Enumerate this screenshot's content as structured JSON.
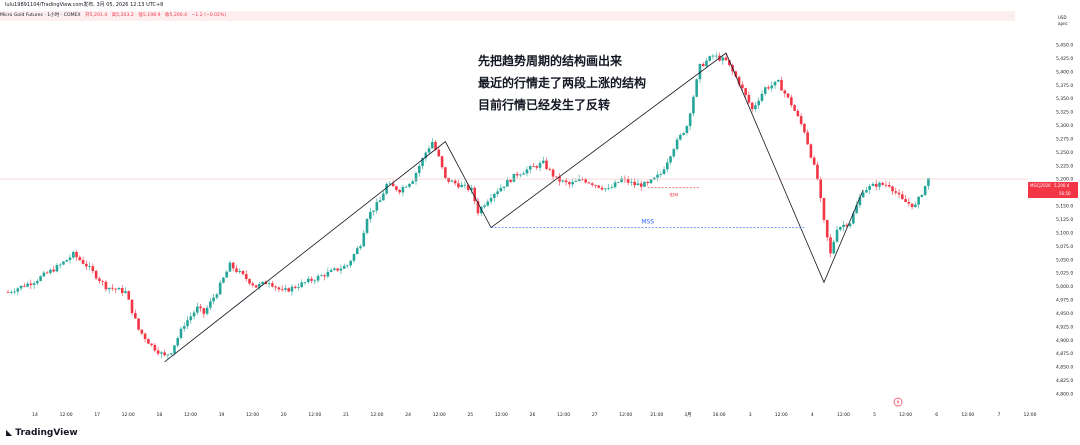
{
  "header": {
    "published": "lulu19891104/TradingView.com发布, 3月 05, 2026 12:13 UTC+8"
  },
  "legend": {
    "symbol": "Micro Gold Futures · 1小时 · COMEX",
    "open": "开5,201.4",
    "high": "高5,203.2",
    "low": "低5,198.9",
    "close": "收5,200.4",
    "change": "−1.2 (−0.02%)"
  },
  "price_scale": {
    "currency": "USD",
    "mode": "apnc",
    "current_symbol": "MGCJ2026",
    "current_price": "5,200.4",
    "countdown": "56:50"
  },
  "annotations": {
    "line1": "先把趋势周期的结构画出来",
    "line2": "最近的行情走了两段上涨的结构",
    "line3": "目前行情已经发生了反转",
    "idm": "IDM",
    "mss": "MSS"
  },
  "branding": {
    "logo_text": "TradingView"
  },
  "colors": {
    "up": "#26a69a",
    "down": "#f23645",
    "mss": "#2962ff"
  },
  "chart_data": {
    "type": "candlestick",
    "title": "Micro Gold Futures · 1小时 · COMEX",
    "y_ticks": [
      4800,
      4825,
      4850,
      4875,
      4900,
      4925,
      4950,
      4975,
      5000,
      5025,
      5050,
      5075,
      5100,
      5125,
      5150,
      5175,
      5200,
      5225,
      5250,
      5275,
      5300,
      5325,
      5350,
      5375,
      5400,
      5425,
      5450
    ],
    "y_tick_labels": [
      "4,800.0",
      "4,825.0",
      "4,850.0",
      "4,875.0",
      "4,900.0",
      "4,925.0",
      "4,950.0",
      "4,975.0",
      "5,000.0",
      "5,025.0",
      "5,050.0",
      "5,075.0",
      "5,100.0",
      "5,125.0",
      "5,150.0",
      "5,175.0",
      "5,200.0",
      "5,225.0",
      "5,250.0",
      "5,275.0",
      "5,300.0",
      "5,325.0",
      "5,350.0",
      "5,375.0",
      "5,400.0",
      "5,425.0",
      "5,450.0"
    ],
    "x_tick_labels": [
      "14",
      "12:00",
      "17",
      "12:00",
      "18",
      "12:00",
      "19",
      "12:00",
      "20",
      "12:00",
      "21",
      "12:00",
      "24",
      "12:00",
      "25",
      "12:00",
      "26",
      "12:00",
      "27",
      "12:00",
      "21:00",
      "3月",
      "16:00",
      "3",
      "12:00",
      "4",
      "12:00",
      "5",
      "12:00",
      "6",
      "12:00",
      "7",
      "12:00"
    ],
    "close_path": [
      [
        0,
        4990
      ],
      [
        4,
        5010
      ],
      [
        8,
        5040
      ],
      [
        10,
        5060
      ],
      [
        12,
        5040
      ],
      [
        15,
        5000
      ],
      [
        18,
        4990
      ],
      [
        20,
        4920
      ],
      [
        22,
        4890
      ],
      [
        24,
        4870
      ],
      [
        25,
        4880
      ],
      [
        27,
        4930
      ],
      [
        29,
        4960
      ],
      [
        30,
        4950
      ],
      [
        32,
        4990
      ],
      [
        34,
        5040
      ],
      [
        36,
        5020
      ],
      [
        38,
        5000
      ],
      [
        40,
        5010
      ],
      [
        42,
        4990
      ],
      [
        44,
        5000
      ],
      [
        46,
        5010
      ],
      [
        48,
        5020
      ],
      [
        50,
        5030
      ],
      [
        52,
        5040
      ],
      [
        54,
        5080
      ],
      [
        55,
        5130
      ],
      [
        57,
        5160
      ],
      [
        58,
        5190
      ],
      [
        60,
        5180
      ],
      [
        62,
        5200
      ],
      [
        64,
        5250
      ],
      [
        65,
        5270
      ],
      [
        66,
        5240
      ],
      [
        67,
        5200
      ],
      [
        69,
        5190
      ],
      [
        71,
        5180
      ],
      [
        72,
        5140
      ],
      [
        74,
        5170
      ],
      [
        76,
        5190
      ],
      [
        78,
        5210
      ],
      [
        80,
        5220
      ],
      [
        82,
        5230
      ],
      [
        84,
        5200
      ],
      [
        86,
        5190
      ],
      [
        88,
        5200
      ],
      [
        90,
        5190
      ],
      [
        92,
        5180
      ],
      [
        94,
        5200
      ],
      [
        96,
        5190
      ],
      [
        98,
        5190
      ],
      [
        100,
        5210
      ],
      [
        102,
        5260
      ],
      [
        104,
        5300
      ],
      [
        106,
        5410
      ],
      [
        108,
        5430
      ],
      [
        110,
        5420
      ],
      [
        112,
        5380
      ],
      [
        114,
        5330
      ],
      [
        116,
        5370
      ],
      [
        118,
        5380
      ],
      [
        120,
        5340
      ],
      [
        122,
        5290
      ],
      [
        124,
        5200
      ],
      [
        125,
        5120
      ],
      [
        126,
        5060
      ],
      [
        127,
        5110
      ],
      [
        129,
        5120
      ],
      [
        131,
        5180
      ],
      [
        133,
        5190
      ],
      [
        135,
        5190
      ],
      [
        137,
        5160
      ],
      [
        139,
        5150
      ],
      [
        141,
        5200
      ]
    ],
    "swing_lines": [
      [
        [
          24,
          4860
        ],
        [
          67,
          5270
        ],
        [
          74,
          5110
        ],
        [
          110,
          5435
        ],
        [
          125,
          5008
        ],
        [
          131,
          5180
        ]
      ]
    ],
    "idm": {
      "x1": 98,
      "x2": 106,
      "y": 5185
    },
    "mss": {
      "x1": 74,
      "x2": 122,
      "y": 5110
    },
    "current_price": 5200.4
  }
}
